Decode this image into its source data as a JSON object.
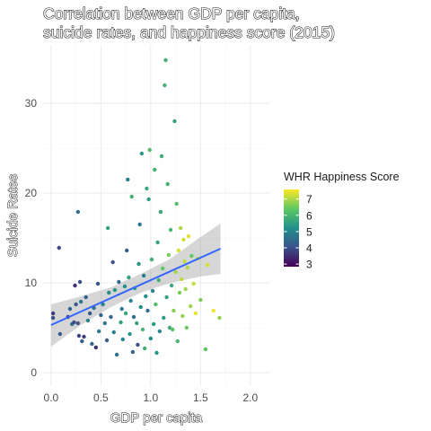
{
  "chart_data": {
    "type": "scatter",
    "title_lines": [
      "Correlation between GDP per capita,",
      "suicide rates, and happiness score (2015)"
    ],
    "xlabel": "GDP per capita",
    "ylabel": "Suicide Rates",
    "xlim": [
      -0.08,
      2.2
    ],
    "ylim": [
      -1.5,
      36.5
    ],
    "x_ticks": [
      0.0,
      0.5,
      1.0,
      1.5,
      2.0
    ],
    "x_tick_labels": [
      "0.0",
      "0.5",
      "1.0",
      "1.5",
      "2.0"
    ],
    "y_ticks": [
      0,
      10,
      20,
      30
    ],
    "y_tick_labels": [
      "0",
      "10",
      "20",
      "30"
    ],
    "grid": true,
    "legend": {
      "title": "WHR Happiness Score",
      "position": "right",
      "scale": "viridis",
      "range": [
        2.84,
        7.59
      ],
      "ticks": [
        3,
        4,
        5,
        6,
        7
      ],
      "tick_labels": [
        "3",
        "4",
        "5",
        "6",
        "7"
      ]
    },
    "trend_line": {
      "method": "lm",
      "color": "#3366FF",
      "from": [
        0.0,
        5.3
      ],
      "to": [
        1.7,
        13.8
      ]
    },
    "confidence_band": [
      {
        "x": 0.0,
        "lower": 2.9,
        "upper": 7.6
      },
      {
        "x": 0.3,
        "lower": 5.3,
        "upper": 8.5
      },
      {
        "x": 0.6,
        "lower": 7.3,
        "upper": 9.5
      },
      {
        "x": 0.9,
        "lower": 8.9,
        "upper": 11.0
      },
      {
        "x": 1.2,
        "lower": 10.0,
        "upper": 12.7
      },
      {
        "x": 1.5,
        "lower": 10.7,
        "upper": 15.1
      },
      {
        "x": 1.7,
        "lower": 11.0,
        "upper": 16.6
      }
    ],
    "points": [
      {
        "x": 0.02,
        "y": 6.6,
        "z": 3.7
      },
      {
        "x": 0.02,
        "y": 6.1,
        "z": 4.0
      },
      {
        "x": 0.08,
        "y": 13.9,
        "z": 3.9
      },
      {
        "x": 0.09,
        "y": 4.3,
        "z": 4.3
      },
      {
        "x": 0.17,
        "y": 6.2,
        "z": 3.7
      },
      {
        "x": 0.19,
        "y": 7.1,
        "z": 4.4
      },
      {
        "x": 0.21,
        "y": 5.4,
        "z": 4.5
      },
      {
        "x": 0.23,
        "y": 5.6,
        "z": 3.9
      },
      {
        "x": 0.24,
        "y": 9.7,
        "z": 3.5
      },
      {
        "x": 0.25,
        "y": 7.6,
        "z": 4.2
      },
      {
        "x": 0.27,
        "y": 5.5,
        "z": 4.1
      },
      {
        "x": 0.27,
        "y": 17.9,
        "z": 4.6
      },
      {
        "x": 0.28,
        "y": 4.1,
        "z": 3.8
      },
      {
        "x": 0.29,
        "y": 10.1,
        "z": 4.0
      },
      {
        "x": 0.3,
        "y": 7.9,
        "z": 4.8
      },
      {
        "x": 0.31,
        "y": 3.5,
        "z": 4.3
      },
      {
        "x": 0.33,
        "y": 4.0,
        "z": 3.7
      },
      {
        "x": 0.35,
        "y": 8.4,
        "z": 4.3
      },
      {
        "x": 0.37,
        "y": 5.8,
        "z": 5.0
      },
      {
        "x": 0.39,
        "y": 6.6,
        "z": 4.1
      },
      {
        "x": 0.41,
        "y": 3.2,
        "z": 4.5
      },
      {
        "x": 0.43,
        "y": 7.2,
        "z": 4.6
      },
      {
        "x": 0.45,
        "y": 2.8,
        "z": 3.5
      },
      {
        "x": 0.47,
        "y": 9.9,
        "z": 4.1
      },
      {
        "x": 0.48,
        "y": 4.6,
        "z": 4.8
      },
      {
        "x": 0.5,
        "y": 6.4,
        "z": 4.3
      },
      {
        "x": 0.52,
        "y": 7.6,
        "z": 4.9
      },
      {
        "x": 0.54,
        "y": 5.5,
        "z": 4.7
      },
      {
        "x": 0.56,
        "y": 3.6,
        "z": 4.2
      },
      {
        "x": 0.57,
        "y": 16.1,
        "z": 5.6
      },
      {
        "x": 0.58,
        "y": 8.9,
        "z": 5.1
      },
      {
        "x": 0.6,
        "y": 6.2,
        "z": 4.5
      },
      {
        "x": 0.62,
        "y": 12.3,
        "z": 4.0
      },
      {
        "x": 0.63,
        "y": 4.5,
        "z": 4.9
      },
      {
        "x": 0.64,
        "y": 9.2,
        "z": 5.3
      },
      {
        "x": 0.66,
        "y": 2.0,
        "z": 4.6
      },
      {
        "x": 0.68,
        "y": 10.1,
        "z": 4.4
      },
      {
        "x": 0.7,
        "y": 5.6,
        "z": 5.5
      },
      {
        "x": 0.71,
        "y": 7.1,
        "z": 4.8
      },
      {
        "x": 0.72,
        "y": 3.7,
        "z": 5.0
      },
      {
        "x": 0.74,
        "y": 9.6,
        "z": 5.2
      },
      {
        "x": 0.75,
        "y": 6.6,
        "z": 5.7
      },
      {
        "x": 0.76,
        "y": 13.6,
        "z": 4.3
      },
      {
        "x": 0.77,
        "y": 21.5,
        "z": 4.9
      },
      {
        "x": 0.78,
        "y": 10.6,
        "z": 5.6
      },
      {
        "x": 0.79,
        "y": 4.3,
        "z": 5.3
      },
      {
        "x": 0.8,
        "y": 8.0,
        "z": 5.0
      },
      {
        "x": 0.81,
        "y": 19.6,
        "z": 5.9
      },
      {
        "x": 0.82,
        "y": 2.3,
        "z": 4.4
      },
      {
        "x": 0.83,
        "y": 6.2,
        "z": 4.6
      },
      {
        "x": 0.84,
        "y": 9.4,
        "z": 5.4
      },
      {
        "x": 0.86,
        "y": 5.5,
        "z": 5.6
      },
      {
        "x": 0.87,
        "y": 3.1,
        "z": 4.0
      },
      {
        "x": 0.88,
        "y": 12.1,
        "z": 5.3
      },
      {
        "x": 0.89,
        "y": 16.5,
        "z": 4.7
      },
      {
        "x": 0.9,
        "y": 7.3,
        "z": 5.1
      },
      {
        "x": 0.91,
        "y": 24.4,
        "z": 5.4
      },
      {
        "x": 0.92,
        "y": 4.8,
        "z": 6.0
      },
      {
        "x": 0.93,
        "y": 10.8,
        "z": 4.9
      },
      {
        "x": 0.94,
        "y": 2.7,
        "z": 5.8
      },
      {
        "x": 0.95,
        "y": 8.5,
        "z": 5.2
      },
      {
        "x": 0.96,
        "y": 20.5,
        "z": 5.7
      },
      {
        "x": 0.97,
        "y": 6.9,
        "z": 4.5
      },
      {
        "x": 0.98,
        "y": 19.3,
        "z": 5.5
      },
      {
        "x": 0.99,
        "y": 24.8,
        "z": 6.1
      },
      {
        "x": 1.0,
        "y": 3.8,
        "z": 5.1
      },
      {
        "x": 1.01,
        "y": 12.6,
        "z": 5.8
      },
      {
        "x": 1.02,
        "y": 9.1,
        "z": 5.0
      },
      {
        "x": 1.03,
        "y": 5.4,
        "z": 5.4
      },
      {
        "x": 1.04,
        "y": 22.6,
        "z": 5.9
      },
      {
        "x": 1.05,
        "y": 7.6,
        "z": 6.2
      },
      {
        "x": 1.06,
        "y": 2.2,
        "z": 5.3
      },
      {
        "x": 1.07,
        "y": 14.5,
        "z": 5.6
      },
      {
        "x": 1.08,
        "y": 10.3,
        "z": 5.9
      },
      {
        "x": 1.09,
        "y": 4.6,
        "z": 5.0
      },
      {
        "x": 1.1,
        "y": 17.9,
        "z": 5.7
      },
      {
        "x": 1.11,
        "y": 24.1,
        "z": 5.8
      },
      {
        "x": 1.12,
        "y": 11.6,
        "z": 6.4
      },
      {
        "x": 1.13,
        "y": 6.1,
        "z": 5.5
      },
      {
        "x": 1.14,
        "y": 32.0,
        "z": 5.9
      },
      {
        "x": 1.15,
        "y": 34.8,
        "z": 5.9
      },
      {
        "x": 1.16,
        "y": 8.4,
        "z": 5.6
      },
      {
        "x": 1.17,
        "y": 21.0,
        "z": 5.9
      },
      {
        "x": 1.18,
        "y": 13.1,
        "z": 6.6
      },
      {
        "x": 1.19,
        "y": 5.0,
        "z": 5.8
      },
      {
        "x": 1.2,
        "y": 15.9,
        "z": 6.0
      },
      {
        "x": 1.21,
        "y": 9.7,
        "z": 5.7
      },
      {
        "x": 1.22,
        "y": 4.8,
        "z": 6.3
      },
      {
        "x": 1.23,
        "y": 6.9,
        "z": 6.7
      },
      {
        "x": 1.24,
        "y": 28.0,
        "z": 5.6
      },
      {
        "x": 1.25,
        "y": 11.2,
        "z": 6.9
      },
      {
        "x": 1.26,
        "y": 18.8,
        "z": 6.2
      },
      {
        "x": 1.27,
        "y": 3.5,
        "z": 6.0
      },
      {
        "x": 1.28,
        "y": 13.6,
        "z": 7.3
      },
      {
        "x": 1.29,
        "y": 8.9,
        "z": 6.6
      },
      {
        "x": 1.3,
        "y": 16.1,
        "z": 7.0
      },
      {
        "x": 1.31,
        "y": 10.4,
        "z": 7.1
      },
      {
        "x": 1.32,
        "y": 6.3,
        "z": 6.8
      },
      {
        "x": 1.33,
        "y": 14.8,
        "z": 7.3
      },
      {
        "x": 1.34,
        "y": 12.4,
        "z": 7.1
      },
      {
        "x": 1.35,
        "y": 9.3,
        "z": 6.9
      },
      {
        "x": 1.36,
        "y": 5.0,
        "z": 6.5
      },
      {
        "x": 1.37,
        "y": 11.7,
        "z": 7.0
      },
      {
        "x": 1.38,
        "y": 15.2,
        "z": 7.4
      },
      {
        "x": 1.4,
        "y": 7.4,
        "z": 6.9
      },
      {
        "x": 1.41,
        "y": 13.0,
        "z": 6.4
      },
      {
        "x": 1.43,
        "y": 9.9,
        "z": 7.2
      },
      {
        "x": 1.45,
        "y": 6.6,
        "z": 7.4
      },
      {
        "x": 1.47,
        "y": 12.7,
        "z": 7.0
      },
      {
        "x": 1.5,
        "y": 8.1,
        "z": 6.6
      },
      {
        "x": 1.55,
        "y": 2.6,
        "z": 6.3
      },
      {
        "x": 1.57,
        "y": 12.0,
        "z": 7.3
      },
      {
        "x": 1.63,
        "y": 6.9,
        "z": 7.5
      },
      {
        "x": 1.69,
        "y": 6.1,
        "z": 6.8
      }
    ]
  }
}
